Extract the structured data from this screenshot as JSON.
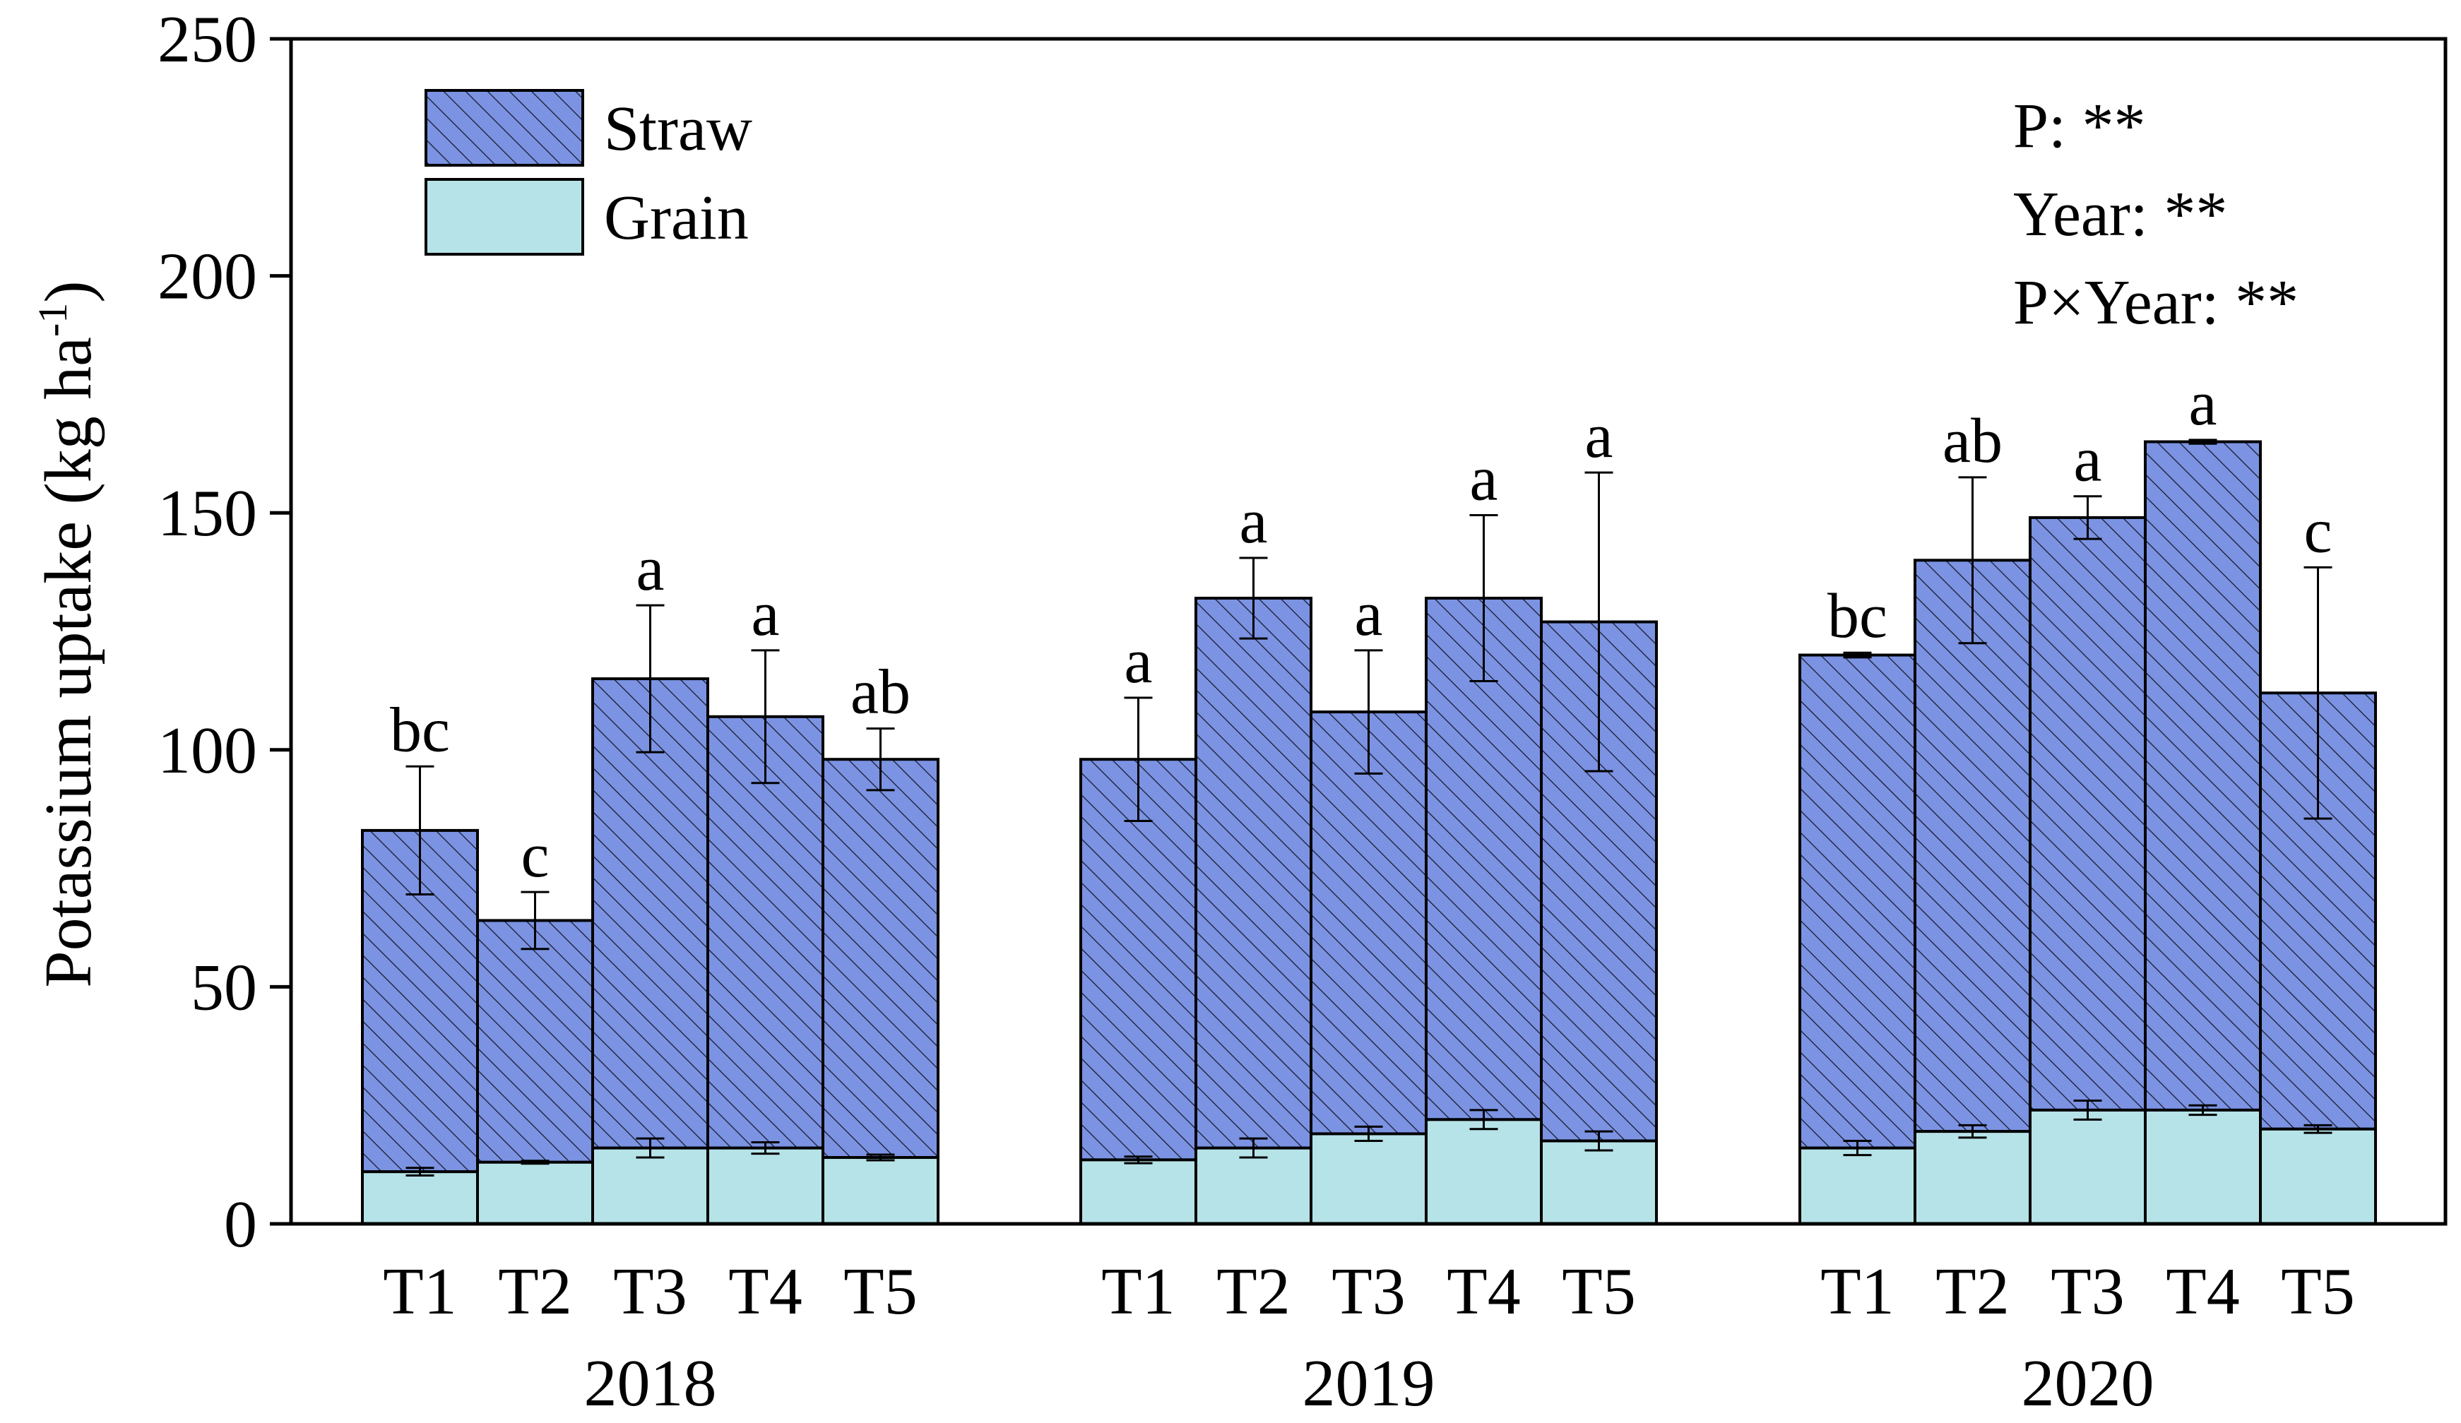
{
  "chart_data": {
    "type": "bar",
    "stacked": true,
    "ylabel": "Potassium uptake (kg ha",
    "ylabel_sup": "-1",
    "ylabel_close": ")",
    "ylim": [
      0,
      250
    ],
    "yticks": [
      "0",
      "50",
      "100",
      "150",
      "200",
      "250"
    ],
    "ytick_values": [
      0,
      50,
      100,
      150,
      200,
      250
    ],
    "legend": {
      "position": "top-left",
      "entries": [
        "Straw",
        "Grain"
      ]
    },
    "annotation_lines": [
      "P: **",
      "Year: **",
      "P×Year: **"
    ],
    "colors": {
      "straw": "#7b93e2",
      "straw_hatch": "#1a1a2e",
      "grain": "#b6e3e8",
      "edge": "#000000"
    },
    "series": [
      {
        "name": "Grain",
        "role": "base"
      },
      {
        "name": "Straw",
        "role": "top"
      }
    ],
    "groups": [
      {
        "year": "2018",
        "categories": [
          "T1",
          "T2",
          "T3",
          "T4",
          "T5"
        ],
        "grain": [
          11,
          13,
          16,
          16,
          14
        ],
        "grain_err": [
          0.8,
          0.3,
          2.0,
          1.2,
          0.6
        ],
        "total": [
          83,
          64,
          115,
          107,
          98
        ],
        "total_err": [
          13.5,
          6,
          15.5,
          14,
          6.5
        ],
        "letters": [
          "bc",
          "c",
          "a",
          "a",
          "ab"
        ]
      },
      {
        "year": "2019",
        "categories": [
          "T1",
          "T2",
          "T3",
          "T4",
          "T5"
        ],
        "grain": [
          13.5,
          16,
          19,
          22,
          17.5
        ],
        "grain_err": [
          0.7,
          2.0,
          1.5,
          2.0,
          2.0
        ],
        "total": [
          98,
          132,
          108,
          132,
          127
        ],
        "total_err": [
          13,
          8.5,
          13,
          17.5,
          31.5
        ],
        "letters": [
          "a",
          "a",
          "a",
          "a",
          "a"
        ]
      },
      {
        "year": "2020",
        "categories": [
          "T1",
          "T2",
          "T3",
          "T4",
          "T5"
        ],
        "grain": [
          16,
          19.5,
          24,
          24,
          20
        ],
        "grain_err": [
          1.5,
          1.3,
          2.0,
          1.0,
          0.8
        ],
        "total": [
          120,
          140,
          149,
          165,
          112
        ],
        "total_err": [
          0.5,
          17.5,
          4.5,
          0.4,
          26.5
        ],
        "letters": [
          "bc",
          "ab",
          "a",
          "a",
          "c"
        ]
      }
    ]
  }
}
